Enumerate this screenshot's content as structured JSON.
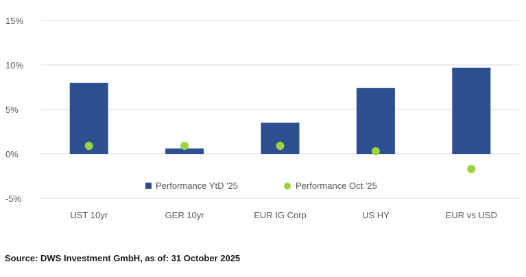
{
  "chart_data": {
    "type": "bar",
    "categories": [
      "UST 10yr",
      "GER 10yr",
      "EUR IG Corp",
      "US HY",
      "EUR vs USD"
    ],
    "series": [
      {
        "name": "Performance YtD  '25",
        "kind": "bar",
        "color": "#2b4f8f",
        "values": [
          8.0,
          0.6,
          3.5,
          7.4,
          9.7
        ]
      },
      {
        "name": "Performance Oct '25",
        "kind": "point",
        "color": "#9bd33a",
        "values": [
          0.9,
          0.9,
          0.9,
          0.3,
          -1.7
        ]
      }
    ],
    "ylim": [
      -5,
      15
    ],
    "yticks": [
      15,
      10,
      5,
      0,
      -5
    ],
    "ytick_labels": [
      "15%",
      "10%",
      "5%",
      "0%",
      "-5%"
    ],
    "grid": true,
    "legend_position": "inside-bottom-center",
    "title": "",
    "xlabel": "",
    "ylabel": ""
  },
  "footer": {
    "source_text": "Source: DWS Investment GmbH, as of: 31 October 2025"
  }
}
